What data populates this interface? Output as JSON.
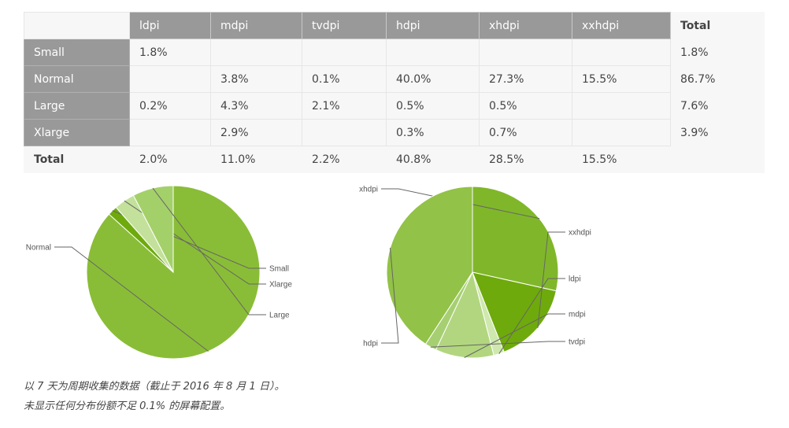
{
  "table": {
    "corner": "",
    "columns": [
      "ldpi",
      "mdpi",
      "tvdpi",
      "hdpi",
      "xhdpi",
      "xxhdpi"
    ],
    "total_label": "Total",
    "rows": [
      {
        "label": "Small",
        "cells": [
          "1.8%",
          "",
          "",
          "",
          "",
          ""
        ],
        "total": "1.8%"
      },
      {
        "label": "Normal",
        "cells": [
          "",
          "3.8%",
          "0.1%",
          "40.0%",
          "27.3%",
          "15.5%"
        ],
        "total": "86.7%"
      },
      {
        "label": "Large",
        "cells": [
          "0.2%",
          "4.3%",
          "2.1%",
          "0.5%",
          "0.5%",
          ""
        ],
        "total": "7.6%"
      },
      {
        "label": "Xlarge",
        "cells": [
          "",
          "2.9%",
          "",
          "0.3%",
          "0.7%",
          ""
        ],
        "total": "3.9%"
      }
    ],
    "footer": {
      "label": "Total",
      "cells": [
        "2.0%",
        "11.0%",
        "2.2%",
        "40.8%",
        "28.5%",
        "15.5%"
      ]
    }
  },
  "chart_data": [
    {
      "type": "pie",
      "start_angle_deg": -90,
      "direction": "clockwise",
      "slices": [
        {
          "label": "Normal",
          "value": 86.7,
          "color": "#8abd37"
        },
        {
          "label": "Small",
          "value": 1.8,
          "color": "#6eaa0c"
        },
        {
          "label": "Xlarge",
          "value": 3.9,
          "color": "#c3e19b"
        },
        {
          "label": "Large",
          "value": 7.6,
          "color": "#a4d06a"
        }
      ]
    },
    {
      "type": "pie",
      "start_angle_deg": -90,
      "direction": "clockwise",
      "slices": [
        {
          "label": "xhdpi",
          "value": 28.5,
          "color": "#80b72a"
        },
        {
          "label": "xxhdpi",
          "value": 15.5,
          "color": "#6eaa0c"
        },
        {
          "label": "ldpi",
          "value": 2.0,
          "color": "#cfe8ae"
        },
        {
          "label": "mdpi",
          "value": 11.0,
          "color": "#b2d67f"
        },
        {
          "label": "tvdpi",
          "value": 2.2,
          "color": "#a6cf72"
        },
        {
          "label": "hdpi",
          "value": 40.8,
          "color": "#92c247"
        }
      ]
    }
  ],
  "captions": [
    "以 7 天为周期收集的数据（截止于 2016 年 8 月 1 日）。",
    "未显示任何分布份额不足 0.1% 的屏幕配置。"
  ]
}
